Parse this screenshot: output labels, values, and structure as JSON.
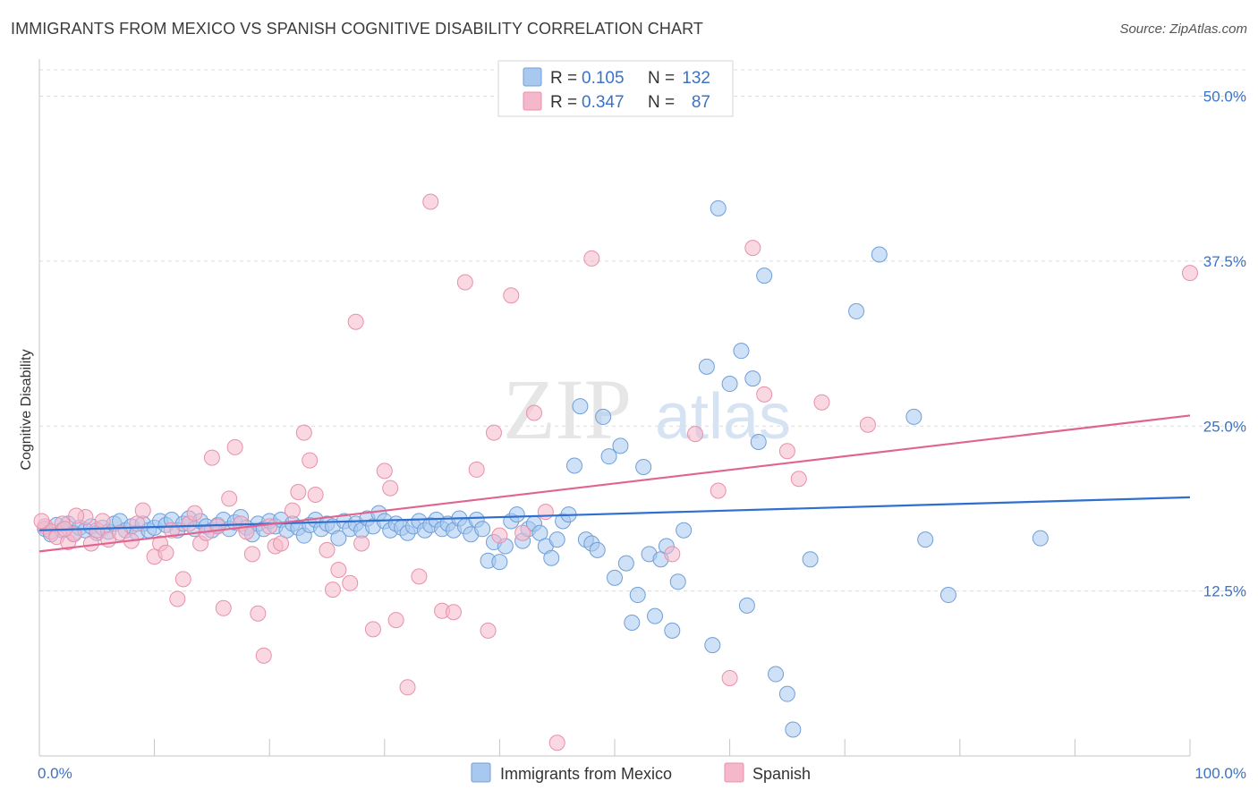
{
  "title": "IMMIGRANTS FROM MEXICO VS SPANISH COGNITIVE DISABILITY CORRELATION CHART",
  "source": "Source: ZipAtlas.com",
  "watermark": {
    "zip": "ZIP",
    "atlas": "atlas"
  },
  "legend_box": {
    "rows": [
      {
        "r_label": "R =",
        "r_value": "0.105",
        "n_label": "N =",
        "n_value": "132",
        "color": "#a8c8f0"
      },
      {
        "r_label": "R =",
        "r_value": "0.347",
        "n_label": "N =",
        "n_value": "87",
        "color": "#f5b8cb"
      }
    ]
  },
  "colors": {
    "blue_fill": "#a8c8f0",
    "blue_stroke": "#6f9fd8",
    "blue_line": "#2f6fd0",
    "pink_fill": "#f5b8cb",
    "pink_stroke": "#e890ac",
    "pink_line": "#e0648f",
    "value_text": "#3a72c8"
  },
  "chart_data": {
    "type": "scatter",
    "title": "IMMIGRANTS FROM MEXICO VS SPANISH COGNITIVE DISABILITY CORRELATION CHART",
    "xlabel": "",
    "ylabel": "Cognitive Disability",
    "xlim": [
      0,
      100
    ],
    "ylim": [
      0,
      52
    ],
    "x_tick_labels": [
      "0.0%",
      "100.0%"
    ],
    "y_ticks": [
      12.5,
      25.0,
      37.5,
      50.0
    ],
    "y_tick_labels": [
      "12.5%",
      "25.0%",
      "37.5%",
      "50.0%"
    ],
    "grid": true,
    "legend_position": "bottom-center",
    "series": [
      {
        "name": "Immigrants from Mexico",
        "trend": [
          [
            0,
            17.1
          ],
          [
            100,
            19.6
          ]
        ],
        "points": [
          [
            0.5,
            17.2
          ],
          [
            1,
            16.8
          ],
          [
            1.5,
            17.5
          ],
          [
            2,
            17.1
          ],
          [
            2.5,
            17.6
          ],
          [
            3,
            16.9
          ],
          [
            3.5,
            17.3
          ],
          [
            4,
            17.1
          ],
          [
            4.5,
            17.4
          ],
          [
            5,
            16.9
          ],
          [
            5.5,
            17.3
          ],
          [
            6,
            17.0
          ],
          [
            6.5,
            17.6
          ],
          [
            7,
            17.8
          ],
          [
            7.5,
            17.1
          ],
          [
            8,
            17.4
          ],
          [
            8.5,
            16.9
          ],
          [
            9,
            17.6
          ],
          [
            9.5,
            17.1
          ],
          [
            10,
            17.3
          ],
          [
            10.5,
            17.8
          ],
          [
            11,
            17.5
          ],
          [
            11.5,
            17.9
          ],
          [
            12,
            17.1
          ],
          [
            12.5,
            17.6
          ],
          [
            13,
            18.0
          ],
          [
            13.5,
            17.2
          ],
          [
            14,
            17.8
          ],
          [
            14.5,
            17.4
          ],
          [
            15,
            17.1
          ],
          [
            15.5,
            17.5
          ],
          [
            16,
            17.9
          ],
          [
            16.5,
            17.2
          ],
          [
            17,
            17.7
          ],
          [
            17.5,
            18.1
          ],
          [
            18,
            17.3
          ],
          [
            18.5,
            16.8
          ],
          [
            19,
            17.6
          ],
          [
            19.5,
            17.2
          ],
          [
            20,
            17.8
          ],
          [
            20.5,
            17.4
          ],
          [
            21,
            17.9
          ],
          [
            21.5,
            17.1
          ],
          [
            22,
            17.6
          ],
          [
            22.5,
            17.3
          ],
          [
            23,
            16.7
          ],
          [
            23.5,
            17.5
          ],
          [
            24,
            17.9
          ],
          [
            24.5,
            17.2
          ],
          [
            25,
            17.6
          ],
          [
            25.5,
            17.4
          ],
          [
            26,
            16.5
          ],
          [
            26.5,
            17.8
          ],
          [
            27,
            17.2
          ],
          [
            27.5,
            17.6
          ],
          [
            28,
            17.1
          ],
          [
            28.5,
            18.0
          ],
          [
            29,
            17.4
          ],
          [
            29.5,
            18.4
          ],
          [
            30,
            17.8
          ],
          [
            30.5,
            17.1
          ],
          [
            31,
            17.6
          ],
          [
            31.5,
            17.3
          ],
          [
            32,
            16.9
          ],
          [
            32.5,
            17.4
          ],
          [
            33,
            17.8
          ],
          [
            33.5,
            17.1
          ],
          [
            34,
            17.5
          ],
          [
            34.5,
            17.9
          ],
          [
            35,
            17.2
          ],
          [
            35.5,
            17.6
          ],
          [
            36,
            17.1
          ],
          [
            36.5,
            18.0
          ],
          [
            37,
            17.4
          ],
          [
            37.5,
            16.8
          ],
          [
            38,
            17.9
          ],
          [
            38.5,
            17.2
          ],
          [
            39,
            14.8
          ],
          [
            39.5,
            16.2
          ],
          [
            40,
            14.7
          ],
          [
            40.5,
            15.9
          ],
          [
            41,
            17.8
          ],
          [
            41.5,
            18.3
          ],
          [
            42,
            16.3
          ],
          [
            42.5,
            17.2
          ],
          [
            43,
            17.6
          ],
          [
            43.5,
            16.9
          ],
          [
            44,
            15.9
          ],
          [
            44.5,
            15.0
          ],
          [
            45,
            16.4
          ],
          [
            45.5,
            17.8
          ],
          [
            46,
            18.3
          ],
          [
            46.5,
            22.0
          ],
          [
            47,
            26.5
          ],
          [
            47.5,
            16.4
          ],
          [
            48,
            16.1
          ],
          [
            48.5,
            15.6
          ],
          [
            49,
            25.7
          ],
          [
            49.5,
            22.7
          ],
          [
            50,
            13.5
          ],
          [
            50.5,
            23.5
          ],
          [
            51,
            14.6
          ],
          [
            51.5,
            10.1
          ],
          [
            52,
            12.2
          ],
          [
            52.5,
            21.9
          ],
          [
            53,
            15.3
          ],
          [
            53.5,
            10.6
          ],
          [
            54,
            14.9
          ],
          [
            54.5,
            15.9
          ],
          [
            55,
            9.5
          ],
          [
            55.5,
            13.2
          ],
          [
            56,
            17.1
          ],
          [
            58,
            29.5
          ],
          [
            58.5,
            8.4
          ],
          [
            60,
            28.2
          ],
          [
            61,
            30.7
          ],
          [
            61.5,
            11.4
          ],
          [
            62,
            28.6
          ],
          [
            62.5,
            23.8
          ],
          [
            63,
            36.4
          ],
          [
            64,
            6.2
          ],
          [
            65,
            4.7
          ],
          [
            65.5,
            2.0
          ],
          [
            67,
            14.9
          ],
          [
            71,
            33.7
          ],
          [
            73,
            38.0
          ],
          [
            76,
            25.7
          ],
          [
            77,
            16.4
          ],
          [
            79,
            12.2
          ],
          [
            59,
            41.5
          ],
          [
            87,
            16.5
          ]
        ]
      },
      {
        "name": "Spanish",
        "trend": [
          [
            0,
            15.5
          ],
          [
            100,
            25.8
          ]
        ],
        "points": [
          [
            0.5,
            17.4
          ],
          [
            1,
            17.0
          ],
          [
            1.5,
            16.6
          ],
          [
            2,
            17.6
          ],
          [
            2.5,
            16.2
          ],
          [
            3,
            16.8
          ],
          [
            4,
            18.1
          ],
          [
            4.5,
            16.1
          ],
          [
            5,
            17.1
          ],
          [
            6,
            16.4
          ],
          [
            7,
            16.9
          ],
          [
            8,
            16.3
          ],
          [
            8.5,
            17.6
          ],
          [
            9,
            18.6
          ],
          [
            10,
            15.1
          ],
          [
            10.5,
            16.1
          ],
          [
            11,
            15.4
          ],
          [
            11.5,
            17.1
          ],
          [
            12,
            11.9
          ],
          [
            12.5,
            13.4
          ],
          [
            13,
            17.6
          ],
          [
            13.5,
            18.4
          ],
          [
            14,
            16.1
          ],
          [
            14.5,
            16.9
          ],
          [
            15,
            22.6
          ],
          [
            15.5,
            17.4
          ],
          [
            16,
            11.2
          ],
          [
            16.5,
            19.5
          ],
          [
            17,
            23.4
          ],
          [
            17.5,
            17.6
          ],
          [
            18,
            17.0
          ],
          [
            18.5,
            15.3
          ],
          [
            19,
            10.8
          ],
          [
            19.5,
            7.6
          ],
          [
            20,
            17.4
          ],
          [
            20.5,
            15.9
          ],
          [
            21,
            16.1
          ],
          [
            22,
            18.6
          ],
          [
            22.5,
            20.0
          ],
          [
            23,
            24.5
          ],
          [
            23.5,
            22.4
          ],
          [
            24,
            19.8
          ],
          [
            25,
            15.6
          ],
          [
            25.5,
            12.6
          ],
          [
            26,
            14.1
          ],
          [
            27,
            13.1
          ],
          [
            27.5,
            32.9
          ],
          [
            28,
            16.1
          ],
          [
            29,
            9.6
          ],
          [
            30,
            21.6
          ],
          [
            30.5,
            20.3
          ],
          [
            31,
            10.3
          ],
          [
            32,
            5.2
          ],
          [
            33,
            13.6
          ],
          [
            34,
            42.0
          ],
          [
            35,
            11.0
          ],
          [
            36,
            10.9
          ],
          [
            37,
            35.9
          ],
          [
            38,
            21.7
          ],
          [
            39,
            9.5
          ],
          [
            39.5,
            24.5
          ],
          [
            40,
            16.7
          ],
          [
            41,
            34.9
          ],
          [
            42,
            16.9
          ],
          [
            43,
            26.0
          ],
          [
            44,
            18.5
          ],
          [
            45,
            1.0
          ],
          [
            48,
            37.7
          ],
          [
            55,
            15.3
          ],
          [
            57,
            24.4
          ],
          [
            59,
            20.1
          ],
          [
            60,
            5.9
          ],
          [
            62,
            38.5
          ],
          [
            63,
            27.4
          ],
          [
            65,
            23.1
          ],
          [
            66,
            21.0
          ],
          [
            68,
            26.8
          ],
          [
            72,
            25.1
          ],
          [
            100,
            36.6
          ],
          [
            0.2,
            17.8
          ],
          [
            2.2,
            17.2
          ],
          [
            3.2,
            18.2
          ],
          [
            5.5,
            17.8
          ]
        ]
      }
    ]
  },
  "x_axis": {
    "left_label": "0.0%",
    "right_label": "100.0%"
  },
  "bottom_legend": [
    {
      "label": "Immigrants from Mexico",
      "color": "#a8c8f0"
    },
    {
      "label": "Spanish",
      "color": "#f5b8cb"
    }
  ]
}
